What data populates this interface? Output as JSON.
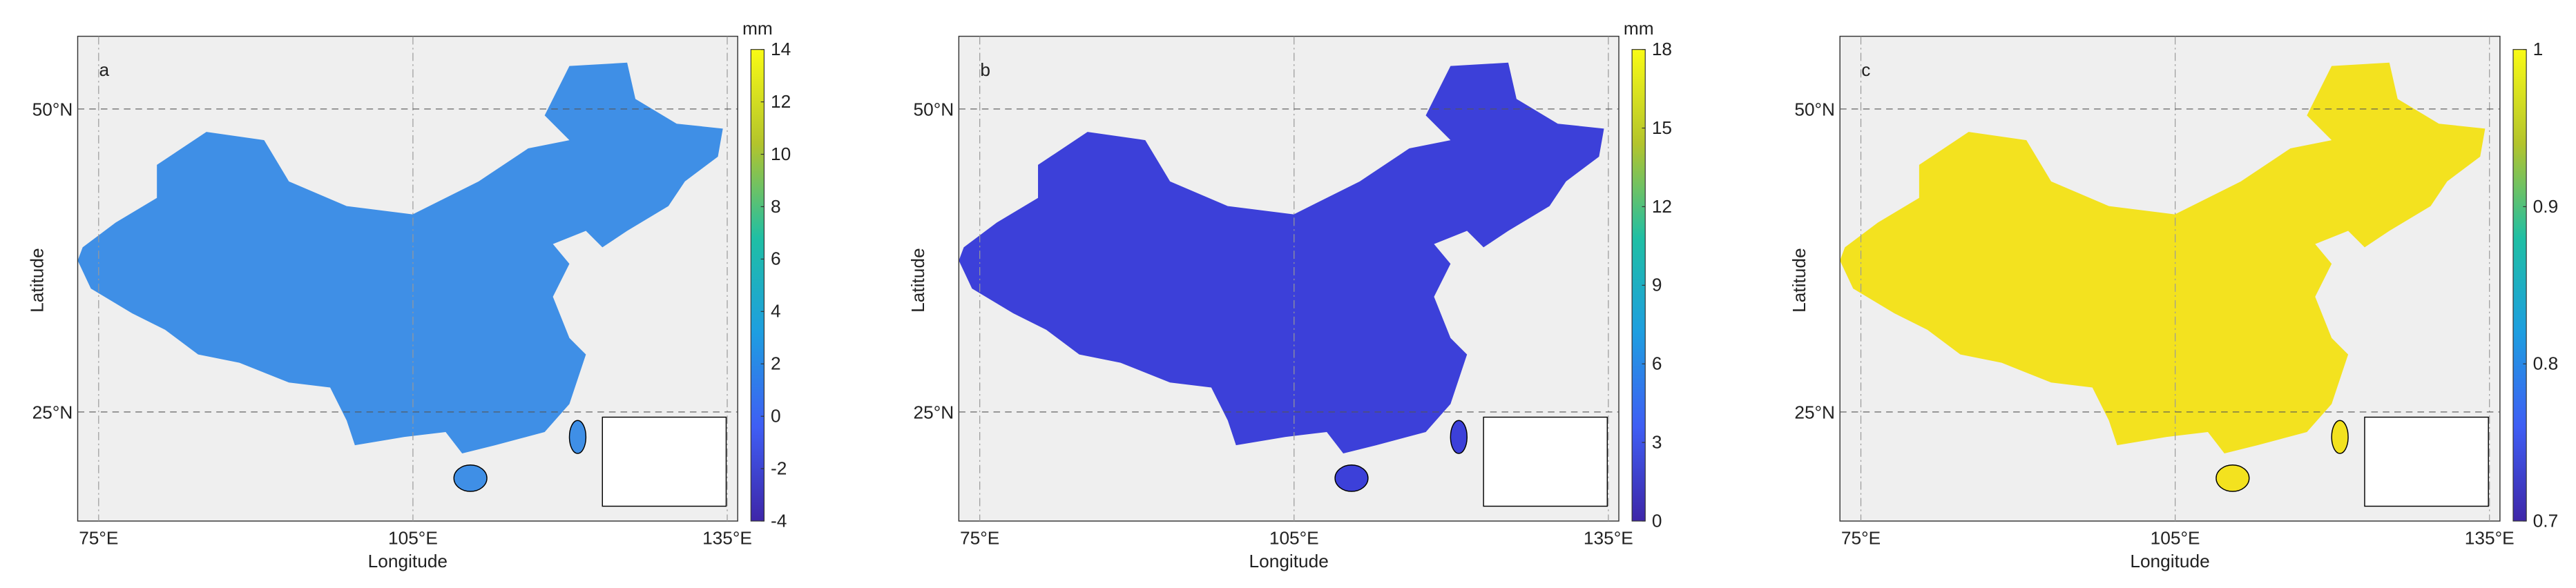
{
  "panels": [
    {
      "label": "a",
      "x_label": "Longitude",
      "y_label": "Latitude",
      "xlim": [
        73,
        136
      ],
      "ylim": [
        16,
        56
      ],
      "xticks": [
        {
          "value": 75,
          "label": "75°E"
        },
        {
          "value": 105,
          "label": "105°E"
        },
        {
          "value": 135,
          "label": "135°E"
        }
      ],
      "yticks": [
        {
          "value": 25,
          "label": "25°N"
        },
        {
          "value": 50,
          "label": "50°N"
        }
      ],
      "colorbar": {
        "unit": "mm",
        "lim": [
          -4,
          14
        ],
        "ticks": [
          -4,
          -2,
          0,
          2,
          4,
          6,
          8,
          10,
          12,
          14
        ]
      },
      "color": "#3f8fe6"
    },
    {
      "label": "b",
      "x_label": "Longitude",
      "y_label": "Latitude",
      "xlim": [
        73,
        136
      ],
      "ylim": [
        16,
        56
      ],
      "xticks": [
        {
          "value": 75,
          "label": "75°E"
        },
        {
          "value": 105,
          "label": "105°E"
        },
        {
          "value": 135,
          "label": "135°E"
        }
      ],
      "yticks": [
        {
          "value": 25,
          "label": "25°N"
        },
        {
          "value": 50,
          "label": "50°N"
        }
      ],
      "colorbar": {
        "unit": "mm",
        "lim": [
          0,
          18
        ],
        "ticks": [
          0,
          3,
          6,
          9,
          12,
          15,
          18
        ]
      },
      "color": "#3c40d9"
    },
    {
      "label": "c",
      "x_label": "Longitude",
      "y_label": "Latitude",
      "xlim": [
        73,
        136
      ],
      "ylim": [
        16,
        56
      ],
      "xticks": [
        {
          "value": 75,
          "label": "75°E"
        },
        {
          "value": 105,
          "label": "105°E"
        },
        {
          "value": 135,
          "label": "135°E"
        }
      ],
      "yticks": [
        {
          "value": 25,
          "label": "25°N"
        },
        {
          "value": 50,
          "label": "50°N"
        }
      ],
      "colorbar": {
        "lim": [
          0.7,
          1
        ],
        "ticks": [
          0.7,
          0.8,
          0.9,
          1
        ]
      },
      "color": "#f3e21f"
    }
  ]
}
